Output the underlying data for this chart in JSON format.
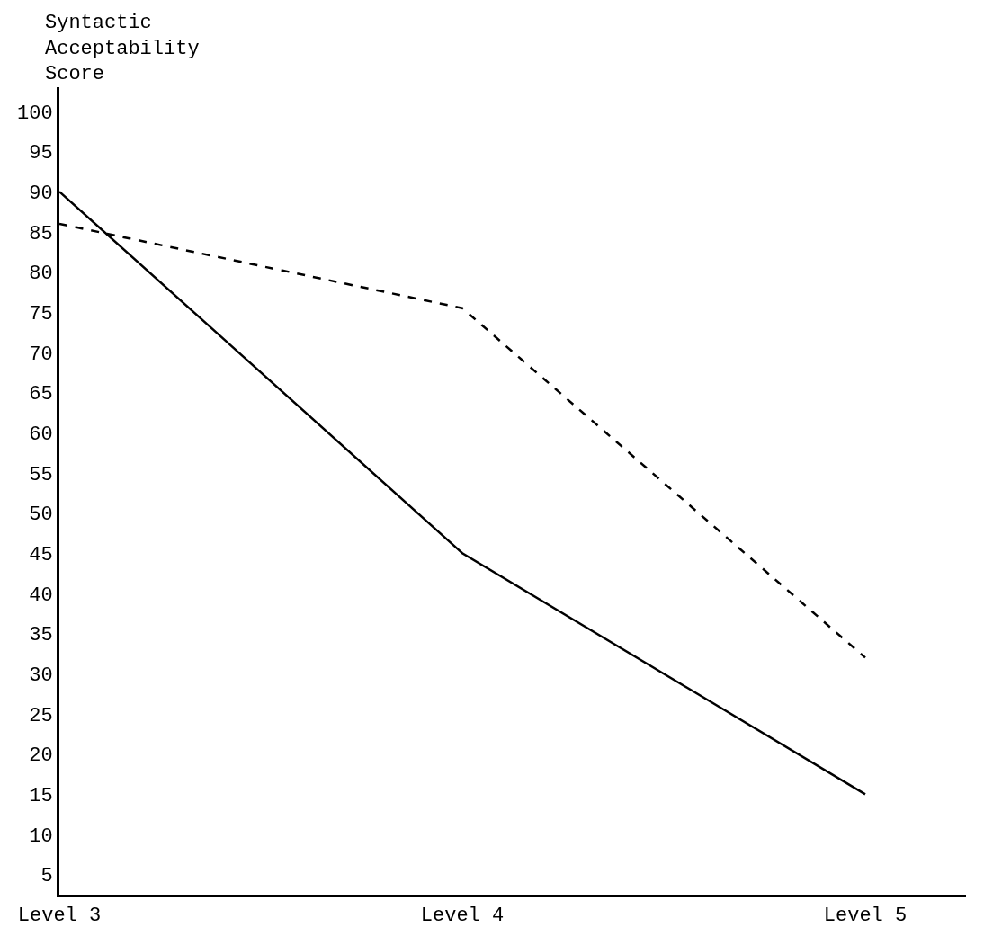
{
  "chart_data": {
    "type": "line",
    "ylabel": "Syntactic\nAcceptability\nScore",
    "categories": [
      "Level 3",
      "Level 4",
      "Level 5"
    ],
    "series": [
      {
        "color": "#000000",
        "values": [
          90,
          45,
          15
        ],
        "line_style": "solid"
      },
      {
        "color": "#000000",
        "values": [
          86,
          75.5,
          32
        ],
        "line_style": "dashed"
      }
    ],
    "ylim": [
      2.5,
      103
    ],
    "yticks": [
      5,
      10,
      15,
      20,
      25,
      30,
      35,
      40,
      45,
      50,
      55,
      60,
      65,
      70,
      75,
      80,
      85,
      90,
      95,
      100
    ],
    "marker": "none"
  }
}
